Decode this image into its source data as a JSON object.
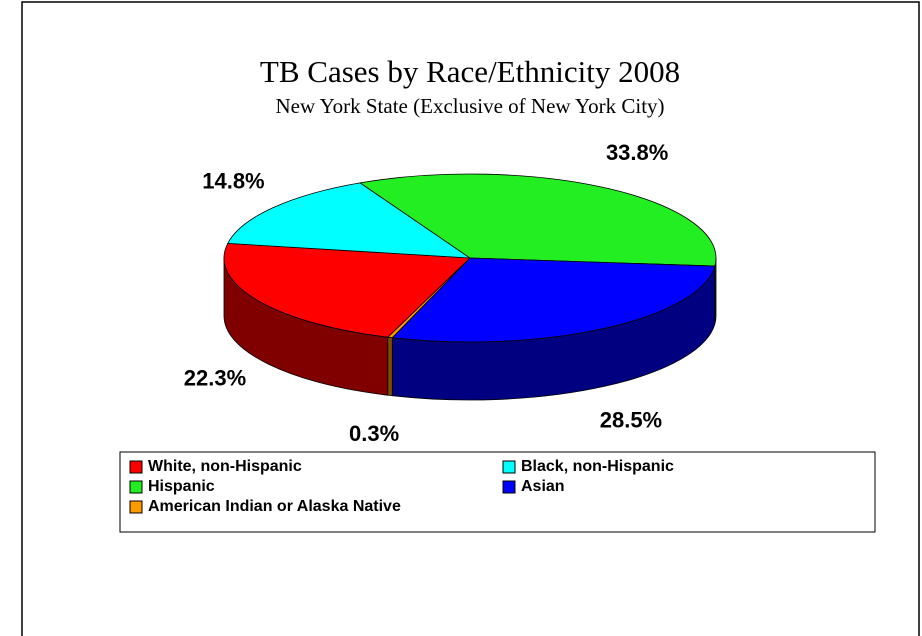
{
  "chart_data": {
    "type": "pie",
    "title": "TB Cases by Race/Ethnicity 2008",
    "subtitle": "New York State (Exclusive of New York City)",
    "categories": [
      "White, non-Hispanic",
      "Black, non-Hispanic",
      "Hispanic",
      "Asian",
      "American Indian or Alaska Native"
    ],
    "values": [
      22.3,
      14.8,
      33.8,
      28.5,
      0.3
    ],
    "value_labels": [
      "22.3%",
      "14.8%",
      "33.8%",
      "28.5%",
      "0.3%"
    ],
    "colors": [
      "#ff0000",
      "#00ffff",
      "#22ee22",
      "#0000ff",
      "#ff9900"
    ],
    "legend": "bottom"
  }
}
